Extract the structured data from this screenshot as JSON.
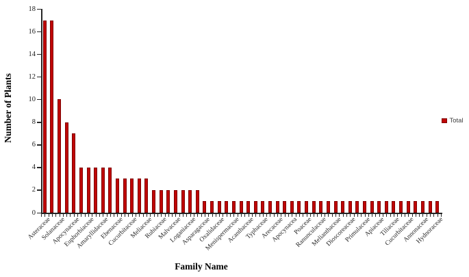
{
  "chart_data": {
    "type": "bar",
    "title": "",
    "xlabel": "Family Name",
    "ylabel": "Number of Plants",
    "ylim": [
      0,
      18
    ],
    "yticks": [
      0,
      2,
      4,
      6,
      8,
      10,
      12,
      14,
      16,
      18
    ],
    "grid": false,
    "legend_position": "right",
    "legend": {
      "label": "Total",
      "color": "#c00505"
    },
    "bar_color": "#c00505",
    "bar_border_color": "#7f0000",
    "axis_color": "#262626",
    "x_label_every": 2,
    "visible_x_labels": [
      "Asteraceae",
      "Solanaceae",
      "Apocynaceae",
      "Euphorbiaceae",
      "Amaryllidaceae",
      "Ebenaceae",
      "Cucurbitaceae",
      "Meliaceae",
      "Rubiaceae",
      "Malvaceae",
      "Loganiaceae",
      "Asparagaceae",
      "Oxalidaceae",
      "Menispermaceae",
      "Acanthaceae",
      "Typhaceae",
      "Arecaceae",
      "Apocynacea",
      "Poaceae",
      "Ranunculaceae",
      "Melianthaceae",
      "Dioscoreaceae",
      "Primulaceae",
      "Apiaceae",
      "Tiliaceae",
      "Cucurbitaceae",
      "Annonaceae",
      "Hydnoraceae"
    ],
    "series": [
      {
        "name": "Total",
        "values": [
          17,
          17,
          10,
          8,
          7,
          4,
          4,
          4,
          4,
          4,
          3,
          3,
          3,
          3,
          3,
          2,
          2,
          2,
          2,
          2,
          2,
          2,
          1,
          1,
          1,
          1,
          1,
          1,
          1,
          1,
          1,
          1,
          1,
          1,
          1,
          1,
          1,
          1,
          1,
          1,
          1,
          1,
          1,
          1,
          1,
          1,
          1,
          1,
          1,
          1,
          1,
          1,
          1,
          1,
          1
        ]
      }
    ]
  }
}
